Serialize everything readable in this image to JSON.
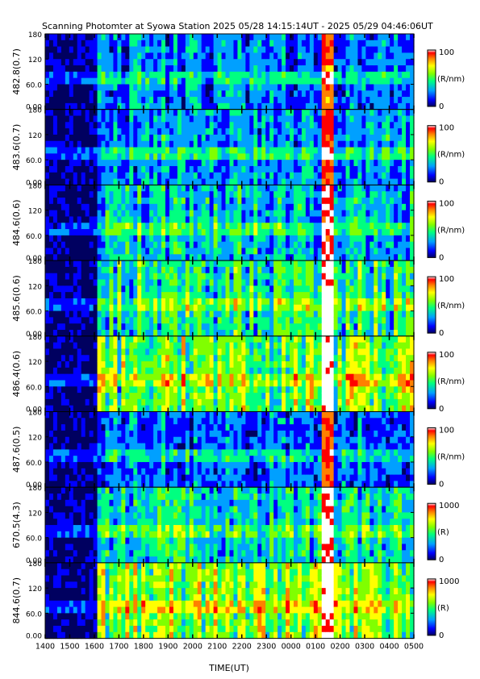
{
  "chart_data": {
    "type": "heatmap",
    "title": "Scanning Photomter at Syowa Station 2025 05/28 14:15:14UT - 2025 05/29 04:46:06UT",
    "xlabel": "TIME(UT)",
    "x_ticks": [
      "1400",
      "1500",
      "1600",
      "1700",
      "1800",
      "1900",
      "2000",
      "2100",
      "2200",
      "2300",
      "0000",
      "0100",
      "0200",
      "0300",
      "0400",
      "0500"
    ],
    "y_ticks": [
      "0.00",
      "60.0",
      "120",
      "180"
    ],
    "ylim": [
      0,
      180
    ],
    "colormap": [
      "#000060",
      "#0000ff",
      "#00a0ff",
      "#00ff80",
      "#80ff00",
      "#ffff00",
      "#ff8000",
      "#ff0000",
      "#ffffff"
    ],
    "panels": [
      {
        "ylabel": "482.8(0.7)",
        "cbar_max": "100",
        "cbar_min": "0",
        "unit": "(R/nm)",
        "level": 0.35
      },
      {
        "ylabel": "483.6(0.7)",
        "cbar_max": "100",
        "cbar_min": "0",
        "unit": "(R/nm)",
        "level": 0.4
      },
      {
        "ylabel": "484.6(0.6)",
        "cbar_max": "100",
        "cbar_min": "0",
        "unit": "(R/nm)",
        "level": 0.45
      },
      {
        "ylabel": "485.6(0.6)",
        "cbar_max": "100",
        "cbar_min": "0",
        "unit": "(R/nm)",
        "level": 0.55
      },
      {
        "ylabel": "486.4(0.6)",
        "cbar_max": "100",
        "cbar_min": "0",
        "unit": "(R/nm)",
        "level": 0.65
      },
      {
        "ylabel": "487.6(0.5)",
        "cbar_max": "100",
        "cbar_min": "0",
        "unit": "(R/nm)",
        "level": 0.35
      },
      {
        "ylabel": "670.5(4.3)",
        "cbar_max": "1000",
        "cbar_min": "0",
        "unit": "(R)",
        "level": 0.5
      },
      {
        "ylabel": "844.6(0.7)",
        "cbar_max": "1000",
        "cbar_min": "0",
        "unit": "(R)",
        "level": 0.7
      }
    ]
  }
}
